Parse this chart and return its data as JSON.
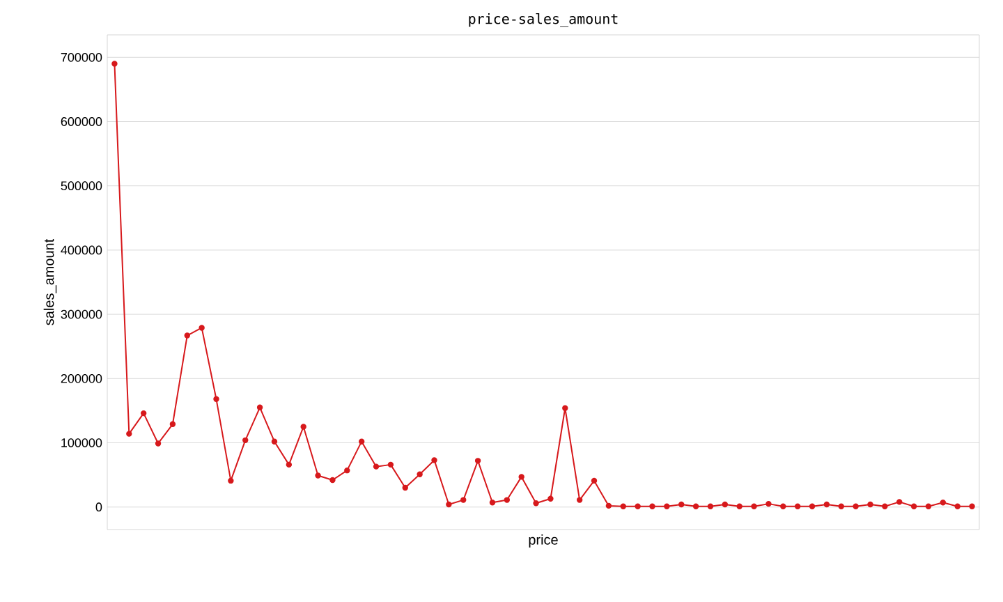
{
  "chart_data": {
    "type": "line",
    "title": "price-sales_amount",
    "xlabel": "price",
    "ylabel": "sales_amount",
    "categories": [
      null,
      null,
      null,
      null,
      null,
      null,
      null,
      null,
      null,
      null,
      null,
      null,
      null,
      null,
      null,
      null,
      null,
      null,
      null,
      null,
      null,
      null,
      null,
      null,
      null,
      null,
      null,
      null,
      null,
      null,
      null,
      null,
      null,
      null,
      null,
      null,
      null,
      null,
      null,
      null,
      null,
      null,
      null,
      null,
      null,
      null,
      null,
      null,
      null,
      null,
      null,
      null,
      null,
      null,
      null,
      null,
      null,
      null,
      null,
      null
    ],
    "series": [
      {
        "color": "#d7191c",
        "values": [
          690000,
          114000,
          146000,
          99000,
          129000,
          267000,
          279000,
          168000,
          41000,
          104000,
          155000,
          102000,
          66000,
          125000,
          49000,
          42000,
          57000,
          102000,
          63000,
          66000,
          30000,
          51000,
          73000,
          4000,
          11000,
          72000,
          7000,
          11000,
          47000,
          6000,
          13000,
          154000,
          11000,
          41000,
          2000,
          1000,
          1000,
          1000,
          1000,
          4000,
          1000,
          1000,
          4000,
          1000,
          1000,
          5000,
          1000,
          1000,
          1000,
          4000,
          1000,
          1000,
          4000,
          1000,
          8000,
          1000,
          1000,
          7000,
          1000,
          1000
        ]
      }
    ],
    "ylim": [
      -35000,
      735000
    ],
    "yticks": [
      0,
      100000,
      200000,
      300000,
      400000,
      500000,
      600000,
      700000
    ],
    "grid": "y",
    "marker": "circle",
    "line_style": "solid",
    "tick_labels": "y"
  }
}
